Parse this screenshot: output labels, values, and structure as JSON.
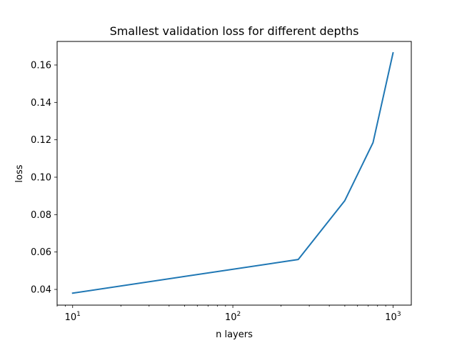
{
  "chart_data": {
    "type": "line",
    "title": "Smallest validation loss for different depths",
    "xlabel": "n layers",
    "ylabel": "loss",
    "x_scale": "log",
    "xlim": [
      8,
      1300
    ],
    "ylim": [
      0.0316,
      0.1726
    ],
    "grid": false,
    "x_ticks": [
      {
        "value": 10,
        "base": "10",
        "exp": "1"
      },
      {
        "value": 100,
        "base": "10",
        "exp": "2"
      },
      {
        "value": 1000,
        "base": "10",
        "exp": "3"
      }
    ],
    "x_minor_ticks": [
      8,
      9,
      20,
      30,
      40,
      50,
      60,
      70,
      80,
      90,
      200,
      300,
      400,
      500,
      600,
      700,
      800,
      900
    ],
    "y_ticks": [
      {
        "value": 0.04,
        "label": "0.04"
      },
      {
        "value": 0.06,
        "label": "0.06"
      },
      {
        "value": 0.08,
        "label": "0.08"
      },
      {
        "value": 0.1,
        "label": "0.10"
      },
      {
        "value": 0.12,
        "label": "0.12"
      },
      {
        "value": 0.14,
        "label": "0.14"
      },
      {
        "value": 0.16,
        "label": "0.16"
      }
    ],
    "series": [
      {
        "color": "#1f77b4",
        "x": [
          10,
          256,
          500,
          750,
          1000
        ],
        "y": [
          0.038,
          0.056,
          0.0875,
          0.1185,
          0.1665
        ]
      }
    ]
  }
}
